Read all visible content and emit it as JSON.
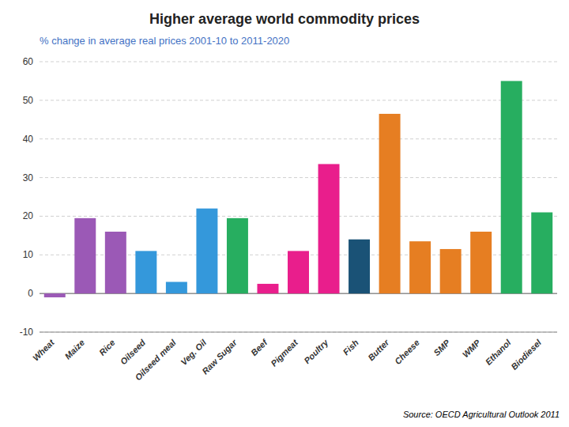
{
  "chart_data": {
    "type": "bar",
    "title": "Higher average world commodity prices",
    "subtitle": "% change in average real prices 2001-10 to 2011-2020",
    "annotation": "Source: OECD Agricultural Outlook 2011",
    "categories": [
      "Wheat",
      "Maize",
      "Rice",
      "Oilseed",
      "Oilseed meal",
      "Veg. Oil",
      "Raw Sugar",
      "Beef",
      "Pigmeat",
      "Poultry",
      "Fish",
      "Butter",
      "Cheese",
      "SMP",
      "WMP",
      "Ethanol",
      "Biodiesel"
    ],
    "values": [
      -1.0,
      19.5,
      16.0,
      11.0,
      3.0,
      22.0,
      19.5,
      2.5,
      11.0,
      33.5,
      14.0,
      46.5,
      13.5,
      11.5,
      16.0,
      55.0,
      21.0
    ],
    "colors": [
      "#9B59B6",
      "#9B59B6",
      "#9B59B6",
      "#3498DB",
      "#3498DB",
      "#3498DB",
      "#27AE60",
      "#E91E8C",
      "#E91E8C",
      "#E91E8C",
      "#1A5276",
      "#E67E22",
      "#E67E22",
      "#E67E22",
      "#E67E22",
      "#27AE60",
      "#27AE60"
    ],
    "ylim": [
      -10,
      60
    ],
    "yticks": [
      -10,
      0,
      10,
      20,
      30,
      40,
      50,
      60
    ],
    "grid": true
  }
}
